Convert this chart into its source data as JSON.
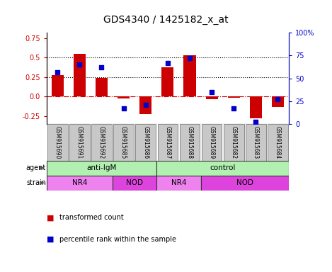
{
  "title": "GDS4340 / 1425182_x_at",
  "samples": [
    "GSM915690",
    "GSM915691",
    "GSM915692",
    "GSM915685",
    "GSM915686",
    "GSM915687",
    "GSM915688",
    "GSM915689",
    "GSM915682",
    "GSM915683",
    "GSM915684"
  ],
  "transformed_count": [
    0.28,
    0.55,
    0.24,
    -0.02,
    -0.22,
    0.38,
    0.53,
    -0.03,
    -0.01,
    -0.28,
    -0.13
  ],
  "percentile_rank": [
    57,
    65,
    62,
    17,
    21,
    67,
    72,
    35,
    17,
    2,
    27
  ],
  "ylim_left": [
    -0.35,
    0.82
  ],
  "ylim_right": [
    0,
    100
  ],
  "yticks_left": [
    -0.25,
    0.0,
    0.25,
    0.5,
    0.75
  ],
  "yticks_right": [
    0,
    25,
    50,
    75,
    100
  ],
  "hlines": [
    0.25,
    0.5
  ],
  "bar_color": "#cc0000",
  "dot_color": "#0000cc",
  "agent_labels": [
    {
      "label": "anti-IgM",
      "start": 0,
      "end": 5
    },
    {
      "label": "control",
      "start": 5,
      "end": 11
    }
  ],
  "agent_color_light": "#b2f0b2",
  "agent_color_dark": "#44dd44",
  "strain_labels": [
    {
      "label": "NR4",
      "start": 0,
      "end": 3,
      "color": "#ee82ee"
    },
    {
      "label": "NOD",
      "start": 3,
      "end": 5,
      "color": "#dd44dd"
    },
    {
      "label": "NR4",
      "start": 5,
      "end": 7,
      "color": "#ee82ee"
    },
    {
      "label": "NOD",
      "start": 7,
      "end": 11,
      "color": "#dd44dd"
    }
  ],
  "legend_bar_label": "transformed count",
  "legend_dot_label": "percentile rank within the sample",
  "bar_width": 0.55,
  "label_box_color": "#c8c8c8",
  "sample_fontsize": 5.5,
  "tick_fontsize": 7,
  "title_fontsize": 10
}
